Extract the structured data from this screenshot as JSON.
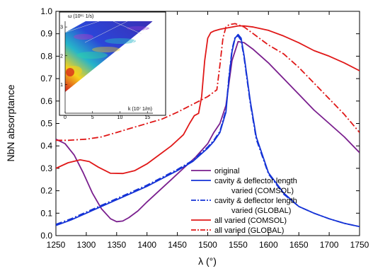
{
  "chart_data": {
    "type": "line",
    "xlabel": "λ (°)",
    "ylabel": "NbN absorptance",
    "xlim": [
      1250,
      1750
    ],
    "ylim": [
      0.0,
      1.0
    ],
    "xticks": [
      "1250",
      "1300",
      "1350",
      "1400",
      "1450",
      "1500",
      "1550",
      "1600",
      "1650",
      "1700",
      "1750"
    ],
    "yticks": [
      "0.0",
      "0.1",
      "0.2",
      "0.3",
      "0.4",
      "0.5",
      "0.6",
      "0.7",
      "0.8",
      "0.9",
      "1.0"
    ],
    "grid": false,
    "legend": {
      "placement": "bottom-right",
      "entries": [
        {
          "label": "original",
          "color": "#7a1f8e",
          "style": "solid"
        },
        {
          "label": "cavity & deflector length",
          "label2": "varied (COMSOL)",
          "color": "#1533d6",
          "style": "solid"
        },
        {
          "label": "cavity & deflector length",
          "label2": "varied (GLOBAL)",
          "color": "#1533d6",
          "style": "dashdot"
        },
        {
          "label": "all varied (COMSOL)",
          "color": "#e01818",
          "style": "solid"
        },
        {
          "label": "all varied (GLOBAL)",
          "color": "#e01818",
          "style": "dashdot"
        }
      ]
    },
    "series": [
      {
        "key": "original",
        "color": "#7a1f8e",
        "style": "solid",
        "x": [
          1250,
          1265,
          1280,
          1295,
          1310,
          1325,
          1340,
          1350,
          1360,
          1370,
          1385,
          1400,
          1420,
          1440,
          1460,
          1480,
          1500,
          1510,
          1520,
          1530,
          1540,
          1550,
          1560,
          1575,
          1600,
          1625,
          1650,
          1675,
          1700,
          1725,
          1750
        ],
        "y": [
          0.43,
          0.41,
          0.36,
          0.28,
          0.19,
          0.12,
          0.075,
          0.062,
          0.065,
          0.08,
          0.11,
          0.15,
          0.2,
          0.25,
          0.3,
          0.35,
          0.41,
          0.46,
          0.5,
          0.58,
          0.78,
          0.865,
          0.86,
          0.83,
          0.77,
          0.7,
          0.63,
          0.56,
          0.5,
          0.44,
          0.37
        ]
      },
      {
        "key": "cavity-comsol",
        "color": "#1533d6",
        "style": "solid",
        "x": [
          1250,
          1275,
          1300,
          1325,
          1350,
          1375,
          1400,
          1425,
          1450,
          1475,
          1500,
          1510,
          1520,
          1530,
          1535,
          1540,
          1545,
          1550,
          1555,
          1560,
          1570,
          1580,
          1600,
          1625,
          1650,
          1675,
          1700,
          1725,
          1750
        ],
        "y": [
          0.045,
          0.07,
          0.1,
          0.13,
          0.16,
          0.19,
          0.22,
          0.255,
          0.29,
          0.33,
          0.39,
          0.42,
          0.46,
          0.55,
          0.7,
          0.82,
          0.88,
          0.897,
          0.88,
          0.8,
          0.6,
          0.44,
          0.28,
          0.19,
          0.13,
          0.1,
          0.075,
          0.055,
          0.04
        ]
      },
      {
        "key": "cavity-global",
        "color": "#1533d6",
        "style": "dashdot",
        "x": [
          1250,
          1275,
          1300,
          1325,
          1350,
          1375,
          1400,
          1425,
          1450,
          1475,
          1500,
          1510,
          1520,
          1530,
          1535,
          1540,
          1545,
          1550,
          1555,
          1560,
          1570,
          1580,
          1600,
          1625,
          1650,
          1675,
          1700,
          1725,
          1750
        ],
        "y": [
          0.05,
          0.075,
          0.105,
          0.135,
          0.165,
          0.195,
          0.225,
          0.26,
          0.295,
          0.335,
          0.395,
          0.425,
          0.465,
          0.56,
          0.71,
          0.83,
          0.885,
          0.89,
          0.87,
          0.79,
          0.59,
          0.43,
          0.275,
          0.185,
          0.13,
          0.1,
          0.075,
          0.055,
          0.04
        ]
      },
      {
        "key": "all-comsol",
        "color": "#e01818",
        "style": "solid",
        "x": [
          1250,
          1270,
          1290,
          1305,
          1320,
          1340,
          1360,
          1380,
          1400,
          1420,
          1440,
          1460,
          1470,
          1478,
          1485,
          1490,
          1495,
          1500,
          1505,
          1510,
          1520,
          1530,
          1540,
          1550,
          1560,
          1575,
          1600,
          1625,
          1650,
          1675,
          1700,
          1725,
          1750
        ],
        "y": [
          0.3,
          0.325,
          0.338,
          0.33,
          0.305,
          0.278,
          0.277,
          0.29,
          0.32,
          0.36,
          0.4,
          0.45,
          0.5,
          0.535,
          0.545,
          0.62,
          0.78,
          0.88,
          0.905,
          0.912,
          0.92,
          0.925,
          0.93,
          0.935,
          0.935,
          0.93,
          0.915,
          0.89,
          0.86,
          0.825,
          0.8,
          0.77,
          0.735
        ]
      },
      {
        "key": "all-global",
        "color": "#e01818",
        "style": "dashdot",
        "x": [
          1250,
          1270,
          1300,
          1325,
          1350,
          1375,
          1400,
          1425,
          1450,
          1475,
          1500,
          1515,
          1520,
          1525,
          1530,
          1535,
          1540,
          1545,
          1550,
          1560,
          1575,
          1600,
          1625,
          1650,
          1675,
          1700,
          1725,
          1750
        ],
        "y": [
          0.425,
          0.425,
          0.43,
          0.44,
          0.46,
          0.48,
          0.5,
          0.52,
          0.55,
          0.585,
          0.62,
          0.65,
          0.76,
          0.88,
          0.93,
          0.94,
          0.943,
          0.945,
          0.94,
          0.93,
          0.9,
          0.85,
          0.81,
          0.75,
          0.68,
          0.61,
          0.54,
          0.46
        ]
      }
    ],
    "inset": {
      "type": "heatmap",
      "ylabel": "ω (10¹⁵ 1/s)",
      "xlabel": "k (10⁷ 1/m)",
      "xticks": [
        "0",
        "5",
        "10",
        "15"
      ],
      "yticks": [
        "1",
        "2",
        "3"
      ],
      "xlim": [
        0,
        16
      ],
      "ylim": [
        0,
        3.2
      ]
    }
  }
}
